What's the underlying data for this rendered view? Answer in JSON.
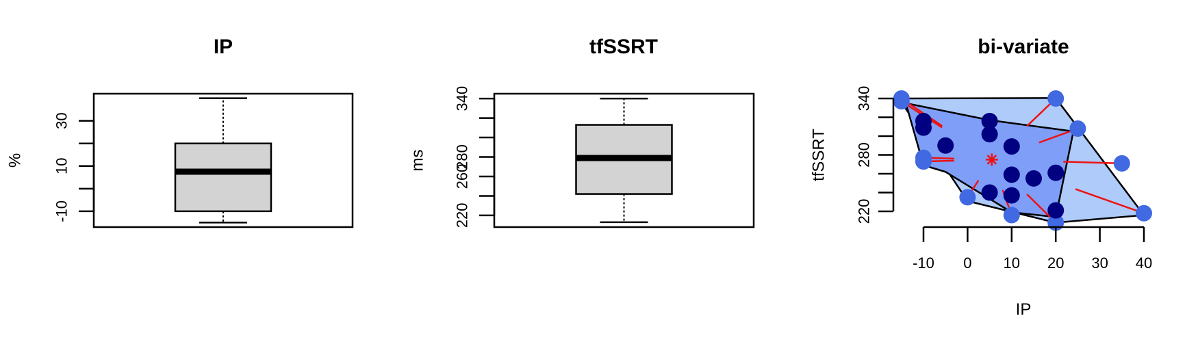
{
  "chart_data": [
    {
      "type": "boxplot",
      "title": "IP",
      "ylabel": "%",
      "ylim": [
        -17,
        42
      ],
      "yticks": [
        -10,
        0,
        10,
        20,
        30
      ],
      "ytick_labels": [
        "-10",
        "",
        "10",
        "",
        "30"
      ],
      "box": {
        "min": -15,
        "q1": -10,
        "median": 7.5,
        "q3": 20,
        "max": 40
      },
      "colors": {
        "fill": "#d3d3d3",
        "border": "#000000"
      }
    },
    {
      "type": "boxplot",
      "title": "tfSSRT",
      "ylabel": "ms",
      "ylim": [
        208,
        345
      ],
      "yticks": [
        220,
        240,
        260,
        280,
        300,
        320,
        340
      ],
      "ytick_labels": [
        "220",
        "",
        "260",
        "280",
        "",
        "",
        "340"
      ],
      "box": {
        "min": 213,
        "q1": 242,
        "median": 279,
        "q3": 313,
        "max": 340
      },
      "colors": {
        "fill": "#d3d3d3",
        "border": "#000000"
      }
    },
    {
      "type": "bagplot",
      "title": "bi-variate",
      "xlabel": "IP",
      "ylabel": "tfSSRT",
      "xlim": [
        -17,
        42
      ],
      "ylim": [
        208,
        345
      ],
      "xticks": [
        -10,
        0,
        10,
        20,
        30,
        40
      ],
      "xtick_labels": [
        "-10",
        "0",
        "10",
        "20",
        "30",
        "40"
      ],
      "yticks": [
        220,
        240,
        260,
        280,
        300,
        320,
        340
      ],
      "ytick_labels": [
        "220",
        "",
        "",
        "280",
        "",
        "",
        "340"
      ],
      "loop": [
        [
          -15,
          340
        ],
        [
          20,
          340.5
        ],
        [
          40,
          216
        ],
        [
          20,
          208
        ],
        [
          0,
          231
        ],
        [
          -15,
          336
        ]
      ],
      "bag": [
        [
          -14,
          335
        ],
        [
          5,
          317
        ],
        [
          24,
          305
        ],
        [
          20,
          214
        ],
        [
          10,
          219
        ],
        [
          -5,
          262
        ],
        [
          -10,
          269
        ],
        [
          -14,
          335
        ]
      ],
      "center": [
        5.5,
        275
      ],
      "outliers": [
        [
          -15,
          340
        ],
        [
          -15,
          337
        ],
        [
          -10,
          277
        ],
        [
          -10,
          273
        ],
        [
          0,
          235
        ],
        [
          10,
          216
        ],
        [
          20,
          208
        ],
        [
          20,
          340
        ],
        [
          25,
          308
        ],
        [
          35,
          271
        ],
        [
          40,
          218
        ]
      ],
      "inliers": [
        [
          -10,
          316
        ],
        [
          -10,
          309
        ],
        [
          -5,
          290
        ],
        [
          5,
          316
        ],
        [
          5,
          302
        ],
        [
          10,
          289
        ],
        [
          10,
          259
        ],
        [
          15,
          255
        ],
        [
          20,
          261
        ],
        [
          5,
          240
        ],
        [
          10,
          237
        ],
        [
          20,
          221
        ]
      ],
      "colors": {
        "loop": "#aecbfa",
        "bag": "#7f9ef7",
        "outlier": "#4169e1",
        "inlier": "#000080",
        "whisker": "#ee1111",
        "center": "#ee1111"
      }
    }
  ]
}
